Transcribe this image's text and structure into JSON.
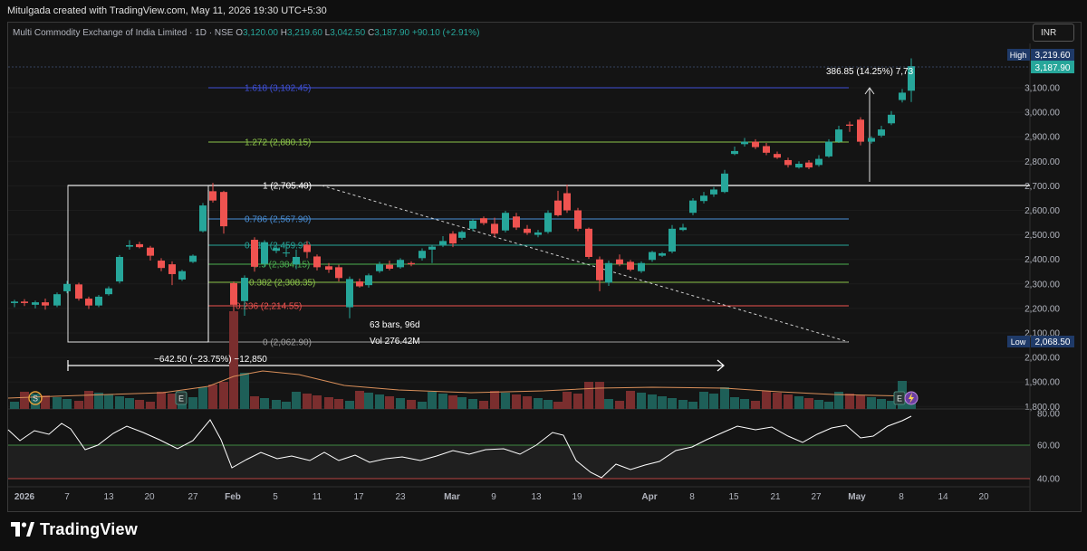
{
  "header": {
    "attribution": "Mitulgada created with TradingView.com, May 11, 2026 19:30 UTC+5:30",
    "symbol": "Multi Commodity Exchange of India Limited · 1D · NSE",
    "ohlc": {
      "o_label": "O",
      "o": "3,120.00",
      "h_label": "H",
      "h": "3,219.60",
      "l_label": "L",
      "l": "3,042.50",
      "c_label": "C",
      "c": "3,187.90",
      "change": "+90.10 (+2.91%)"
    }
  },
  "currency": "INR",
  "price_axis": {
    "ticks": [
      "3,100.00",
      "3,000.00",
      "2,900.00",
      "2,800.00",
      "2,700.00",
      "2,600.00",
      "2,500.00",
      "2,400.00",
      "2,300.00",
      "2,200.00",
      "2,100.00",
      "2,000.00",
      "1,900.00",
      "1,800.00"
    ],
    "high_label": "High",
    "high_value": "3,219.60",
    "last_value": "3,187.90",
    "low_label": "Low",
    "low_value": "2,068.50"
  },
  "rsi_axis": {
    "ticks": [
      "80.00",
      "60.00",
      "40.00"
    ]
  },
  "time_axis": {
    "ticks": [
      "2026",
      "7",
      "13",
      "20",
      "27",
      "Feb",
      "5",
      "11",
      "17",
      "23",
      "Mar",
      "9",
      "13",
      "19",
      "Apr",
      "8",
      "15",
      "21",
      "27",
      "May",
      "8",
      "14",
      "20"
    ]
  },
  "fib_levels": [
    {
      "label": "1.618 (3,102.45)",
      "color": "#3f51d8"
    },
    {
      "label": "1.272 (2,880.15)",
      "color": "#8bc34a"
    },
    {
      "label": "1 (2,705.40)",
      "color": "#ffffff"
    },
    {
      "label": "0.786 (2,567.90)",
      "color": "#4a90d9"
    },
    {
      "label": "0.618 (2,459.96)",
      "color": "#26a69a"
    },
    {
      "label": "0.5 (2,384.15)",
      "color": "#4caf50"
    },
    {
      "label": "0.382 (2,308.35)",
      "color": "#8bc34a"
    },
    {
      "label": "0.236 (2,214.55)",
      "color": "#ef5350"
    },
    {
      "label": "0 (2,062.90)",
      "color": "#9e9e9e"
    }
  ],
  "annotations": {
    "measure_up": "386.85 (14.25%) 7,73",
    "range_bars": "63 bars, 96d",
    "range_vol": "Vol 276.42M",
    "range_change": "−642.50 (−23.75%) −12,850"
  },
  "event_badges": [
    "S",
    "E",
    "E"
  ],
  "colors": {
    "up": "#26a69a",
    "down": "#ef5350",
    "bg": "#141414",
    "grid": "#1e1e1e"
  },
  "brand": "TradingView"
}
